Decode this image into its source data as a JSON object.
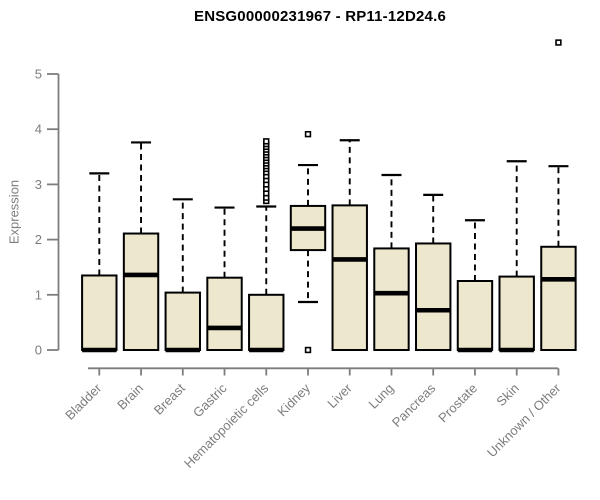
{
  "title": "ENSG00000231967 - RP11-12D24.6",
  "chart_data": {
    "type": "boxplot",
    "title": "ENSG00000231967 - RP11-12D24.6",
    "xlabel": "",
    "ylabel": "Expression",
    "ylim": [
      0,
      5.6
    ],
    "yticks": [
      0,
      1,
      2,
      3,
      4,
      5
    ],
    "grid": false,
    "legend": "none",
    "categories": [
      "Bladder",
      "Brain",
      "Breast",
      "Gastric",
      "Hematopoietic cells",
      "Kidney",
      "Liver",
      "Lung",
      "Pancreas",
      "Prostate",
      "Skin",
      "Unknown / Other"
    ],
    "boxes": [
      {
        "category": "Bladder",
        "whisker_low": 0,
        "q1": 0,
        "median": 0,
        "q3": 1.35,
        "whisker_high": 3.2,
        "outliers": []
      },
      {
        "category": "Brain",
        "whisker_low": 0,
        "q1": 0,
        "median": 1.36,
        "q3": 2.11,
        "whisker_high": 3.76,
        "outliers": []
      },
      {
        "category": "Breast",
        "whisker_low": 0,
        "q1": 0,
        "median": 0,
        "q3": 1.04,
        "whisker_high": 2.73,
        "outliers": []
      },
      {
        "category": "Gastric",
        "whisker_low": 0,
        "q1": 0,
        "median": 0.4,
        "q3": 1.31,
        "whisker_high": 2.58,
        "outliers": []
      },
      {
        "category": "Hematopoietic cells",
        "whisker_low": 0,
        "q1": 0,
        "median": 0,
        "q3": 1.0,
        "whisker_high": 2.6,
        "outliers": [
          2.7,
          2.76,
          2.84,
          2.92,
          3.0,
          3.08,
          3.15,
          3.22,
          3.28,
          3.33,
          3.38,
          3.43,
          3.48,
          3.53,
          3.58,
          3.63,
          3.68,
          3.73,
          3.78
        ]
      },
      {
        "category": "Kidney",
        "whisker_low": 0.87,
        "q1": 1.81,
        "median": 2.2,
        "q3": 2.61,
        "whisker_high": 3.35,
        "outliers": [
          3.91,
          0
        ]
      },
      {
        "category": "Liver",
        "whisker_low": 0,
        "q1": 0,
        "median": 1.64,
        "q3": 2.62,
        "whisker_high": 3.8,
        "outliers": []
      },
      {
        "category": "Lung",
        "whisker_low": 0,
        "q1": 0,
        "median": 1.03,
        "q3": 1.84,
        "whisker_high": 3.17,
        "outliers": []
      },
      {
        "category": "Pancreas",
        "whisker_low": 0,
        "q1": 0,
        "median": 0.72,
        "q3": 1.93,
        "whisker_high": 2.81,
        "outliers": []
      },
      {
        "category": "Prostate",
        "whisker_low": 0,
        "q1": 0,
        "median": 0,
        "q3": 1.25,
        "whisker_high": 2.35,
        "outliers": []
      },
      {
        "category": "Skin",
        "whisker_low": 0,
        "q1": 0,
        "median": 0,
        "q3": 1.33,
        "whisker_high": 3.42,
        "outliers": []
      },
      {
        "category": "Unknown / Other",
        "whisker_low": 0,
        "q1": 0,
        "median": 1.28,
        "q3": 1.87,
        "whisker_high": 3.33,
        "outliers": [
          5.57
        ]
      }
    ]
  },
  "colors": {
    "box_fill": "#EDE8CD",
    "box_border": "#000000",
    "median": "#000000",
    "whisker": "#000000",
    "axis": "#7d7d7d",
    "tick_label": "#7d7d7d",
    "title": "#000000",
    "background": "#ffffff"
  }
}
